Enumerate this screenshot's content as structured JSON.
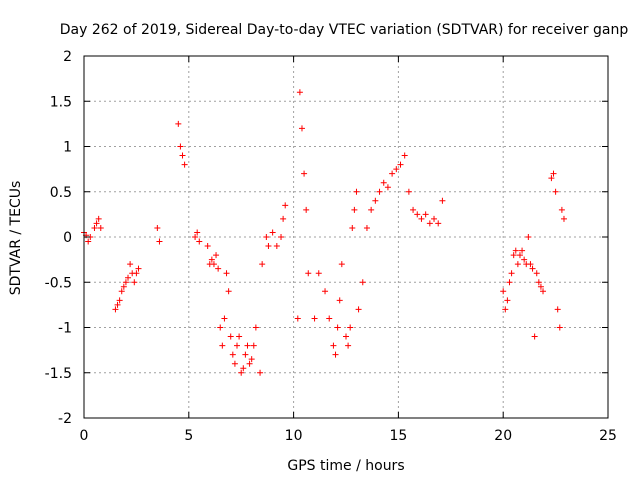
{
  "chart_data": {
    "type": "scatter",
    "title": "Day 262 of 2019, Sidereal Day-to-day VTEC variation (SDTVAR) for receiver ganp",
    "xlabel": "GPS time / hours",
    "ylabel": "SDTVAR / TECUs",
    "xlim": [
      0,
      25
    ],
    "ylim": [
      -2,
      2
    ],
    "xticks": [
      "0",
      "5",
      "10",
      "15",
      "20",
      "25"
    ],
    "yticks": [
      "2",
      "1.5",
      "1",
      "0.5",
      "0",
      "-0.5",
      "-1",
      "-1.5",
      "-2"
    ],
    "grid": true,
    "marker": "+",
    "color": "#ff0000",
    "series": [
      {
        "name": "SDTVAR",
        "x": [
          0.0,
          0.1,
          0.2,
          0.3,
          0.5,
          0.6,
          0.7,
          0.8,
          1.5,
          1.6,
          1.7,
          1.8,
          1.9,
          2.0,
          2.1,
          2.2,
          2.3,
          2.4,
          2.5,
          2.6,
          3.5,
          3.6,
          4.5,
          4.6,
          4.7,
          4.8,
          5.3,
          5.4,
          5.5,
          5.9,
          6.0,
          6.1,
          6.2,
          6.3,
          6.4,
          6.5,
          6.6,
          6.7,
          6.8,
          6.9,
          7.0,
          7.1,
          7.2,
          7.3,
          7.4,
          7.5,
          7.6,
          7.7,
          7.8,
          7.9,
          8.0,
          8.1,
          8.2,
          8.4,
          8.5,
          8.7,
          8.8,
          9.0,
          9.2,
          9.4,
          9.5,
          9.6,
          10.2,
          10.3,
          10.4,
          10.5,
          10.6,
          10.7,
          11.0,
          11.2,
          11.5,
          11.7,
          11.9,
          12.0,
          12.1,
          12.2,
          12.3,
          12.5,
          12.6,
          12.7,
          12.8,
          12.9,
          13.0,
          13.1,
          13.3,
          13.5,
          13.7,
          13.9,
          14.1,
          14.3,
          14.5,
          14.7,
          14.9,
          15.1,
          15.3,
          15.5,
          15.7,
          15.9,
          16.1,
          16.3,
          16.5,
          16.7,
          16.9,
          17.1,
          20.0,
          20.1,
          20.2,
          20.3,
          20.4,
          20.5,
          20.6,
          20.7,
          20.8,
          20.9,
          21.0,
          21.1,
          21.2,
          21.3,
          21.4,
          21.5,
          21.6,
          21.7,
          21.8,
          21.9,
          22.3,
          22.4,
          22.5,
          22.6,
          22.7,
          22.8,
          22.9
        ],
        "y": [
          0.05,
          0.02,
          -0.05,
          0.0,
          0.1,
          0.15,
          0.2,
          0.1,
          -0.8,
          -0.75,
          -0.7,
          -0.6,
          -0.55,
          -0.5,
          -0.45,
          -0.3,
          -0.4,
          -0.5,
          -0.4,
          -0.35,
          0.1,
          -0.05,
          1.25,
          1.0,
          0.9,
          0.8,
          0.0,
          0.05,
          -0.05,
          -0.1,
          -0.3,
          -0.25,
          -0.3,
          -0.2,
          -0.35,
          -1.0,
          -1.2,
          -0.9,
          -0.4,
          -0.6,
          -1.1,
          -1.3,
          -1.4,
          -1.2,
          -1.1,
          -1.5,
          -1.45,
          -1.3,
          -1.2,
          -1.4,
          -1.35,
          -1.2,
          -1.0,
          -1.5,
          -0.3,
          0.0,
          -0.1,
          0.05,
          -0.1,
          0.0,
          0.2,
          0.35,
          -0.9,
          1.6,
          1.2,
          0.7,
          0.3,
          -0.4,
          -0.9,
          -0.4,
          -0.6,
          -0.9,
          -1.2,
          -1.3,
          -1.0,
          -0.7,
          -0.3,
          -1.1,
          -1.2,
          -1.0,
          0.1,
          0.3,
          0.5,
          -0.8,
          -0.5,
          0.1,
          0.3,
          0.4,
          0.5,
          0.6,
          0.55,
          0.7,
          0.75,
          0.8,
          0.9,
          0.5,
          0.3,
          0.25,
          0.2,
          0.25,
          0.15,
          0.2,
          0.15,
          0.4,
          -0.6,
          -0.8,
          -0.7,
          -0.5,
          -0.4,
          -0.2,
          -0.15,
          -0.3,
          -0.2,
          -0.15,
          -0.25,
          -0.3,
          0.0,
          -0.3,
          -0.35,
          -1.1,
          -0.4,
          -0.5,
          -0.55,
          -0.6,
          0.65,
          0.7,
          0.5,
          -0.8,
          -1.0,
          0.3,
          0.2
        ]
      }
    ]
  }
}
